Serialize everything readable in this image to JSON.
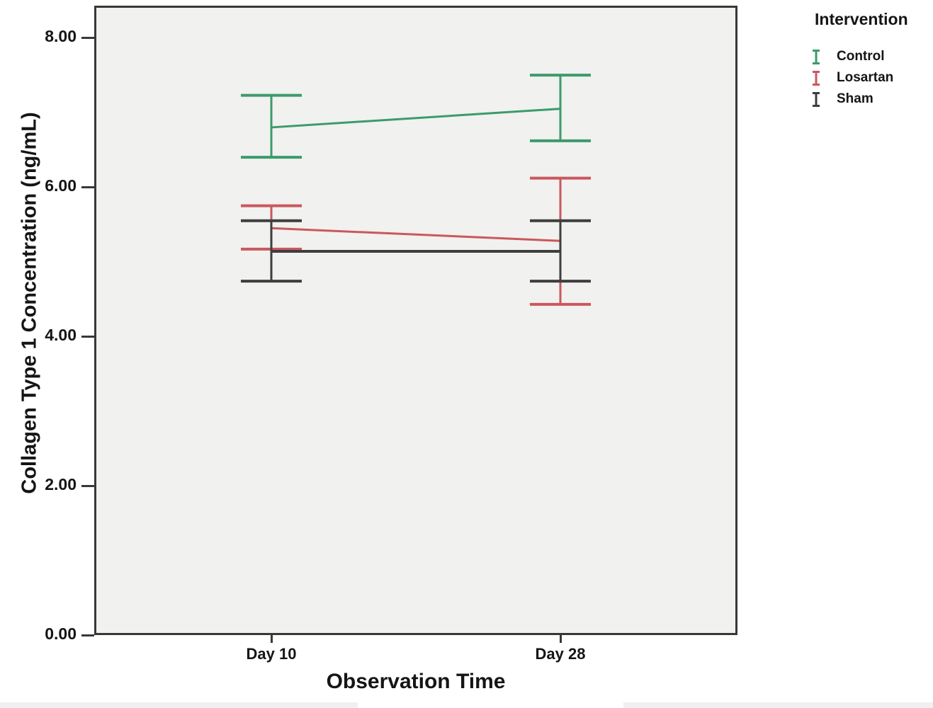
{
  "chart_data": {
    "type": "line",
    "subtype": "error-bar-interaction-plot",
    "title": "",
    "xlabel": "Observation Time",
    "ylabel": "Collagen Type 1 Concentration (ng/mL)",
    "legend_title": "Intervention",
    "legend_position": "top-right",
    "grid": false,
    "plot_background": "#f1f1ef",
    "categories": [
      "Day 10",
      "Day 28"
    ],
    "y_ticks": [
      {
        "label": "0.00",
        "value": 0
      },
      {
        "label": "2.00",
        "value": 2
      },
      {
        "label": "4.00",
        "value": 4
      },
      {
        "label": "6.00",
        "value": 6
      },
      {
        "label": "8.00",
        "value": 8
      }
    ],
    "ylim": [
      0,
      8.43
    ],
    "series": [
      {
        "name": "Control",
        "color": "#3b9b6b",
        "means": [
          6.8,
          7.05
        ],
        "ci_low": [
          6.4,
          6.62
        ],
        "ci_high": [
          7.23,
          7.5
        ]
      },
      {
        "name": "Losartan",
        "color": "#c9585d",
        "means": [
          5.45,
          5.28
        ],
        "ci_low": [
          5.17,
          4.43
        ],
        "ci_high": [
          5.75,
          6.12
        ]
      },
      {
        "name": "Sham",
        "color": "#3e3e3e",
        "means": [
          5.14,
          5.14
        ],
        "ci_low": [
          4.74,
          4.74
        ],
        "ci_high": [
          5.55,
          5.55
        ]
      }
    ]
  }
}
